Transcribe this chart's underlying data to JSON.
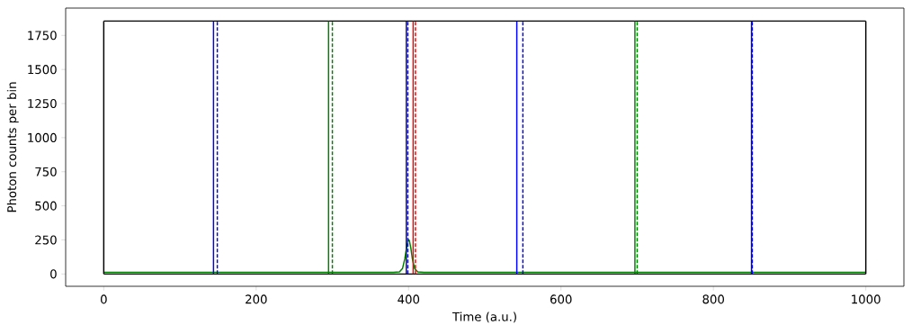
{
  "chart_data": {
    "type": "line",
    "xlabel": "Time (a.u.)",
    "ylabel": "Photon counts per bin",
    "xlim": [
      -50,
      1050
    ],
    "ylim": [
      -90,
      1950
    ],
    "xticks": [
      0,
      200,
      400,
      600,
      800,
      1000
    ],
    "yticks": [
      0,
      250,
      500,
      750,
      1000,
      1250,
      1500,
      1750
    ],
    "grid": false,
    "marker": "none",
    "series": [
      {
        "color": "#008000",
        "line_style": "solid",
        "x": [
          0,
          380,
          388,
          392,
          395,
          397,
          399,
          400,
          401,
          403,
          405,
          408,
          412,
          420,
          1000
        ],
        "values": [
          13,
          13,
          15,
          40,
          110,
          180,
          240,
          252,
          245,
          190,
          110,
          40,
          15,
          13,
          13
        ]
      },
      {
        "color": "#000000",
        "line_style": "solid",
        "x": [
          0,
          0
        ],
        "values": [
          0,
          1855
        ]
      },
      {
        "color": "#000000",
        "line_style": "solid",
        "x": [
          0,
          1000
        ],
        "values": [
          1855,
          1855
        ]
      },
      {
        "color": "#000000",
        "line_style": "solid",
        "x": [
          1000,
          1000
        ],
        "values": [
          0,
          1855
        ]
      },
      {
        "color": "#000000",
        "line_style": "solid",
        "x": [
          0,
          1000
        ],
        "values": [
          0,
          0
        ]
      },
      {
        "color": "#0000ff",
        "line_style": "solid",
        "x": [
          144,
          144
        ],
        "values": [
          0,
          1855
        ]
      },
      {
        "color": "#0000ff",
        "line_style": "dashed",
        "x": [
          149,
          149
        ],
        "values": [
          0,
          1855
        ]
      },
      {
        "color": "#008000",
        "line_style": "solid",
        "x": [
          295,
          295
        ],
        "values": [
          0,
          1855
        ]
      },
      {
        "color": "#008000",
        "line_style": "dashed",
        "x": [
          300,
          300
        ],
        "values": [
          0,
          1855
        ]
      },
      {
        "color": "#0000ff",
        "line_style": "solid",
        "x": [
          397,
          397
        ],
        "values": [
          0,
          1855
        ]
      },
      {
        "color": "#0000ff",
        "line_style": "dashed",
        "x": [
          399,
          399
        ],
        "values": [
          0,
          1855
        ]
      },
      {
        "color": "#ff0000",
        "line_style": "solid",
        "x": [
          406,
          406
        ],
        "values": [
          0,
          1855
        ]
      },
      {
        "color": "#ff0000",
        "line_style": "dashed",
        "x": [
          409,
          409
        ],
        "values": [
          0,
          1855
        ]
      },
      {
        "color": "#0000ff",
        "line_style": "solid",
        "x": [
          542,
          542
        ],
        "values": [
          0,
          1855
        ]
      },
      {
        "color": "#0000ff",
        "line_style": "dashed",
        "x": [
          550,
          550
        ],
        "values": [
          0,
          1855
        ]
      },
      {
        "color": "#008000",
        "line_style": "solid",
        "x": [
          697,
          697
        ],
        "values": [
          0,
          1855
        ]
      },
      {
        "color": "#008000",
        "line_style": "dashed",
        "x": [
          700,
          700
        ],
        "values": [
          0,
          1855
        ]
      },
      {
        "color": "#0000ff",
        "line_style": "solid",
        "x": [
          850,
          850
        ],
        "values": [
          0,
          1855
        ]
      },
      {
        "color": "#0000ff",
        "line_style": "dashed",
        "x": [
          851,
          851
        ],
        "values": [
          0,
          1855
        ]
      }
    ]
  }
}
